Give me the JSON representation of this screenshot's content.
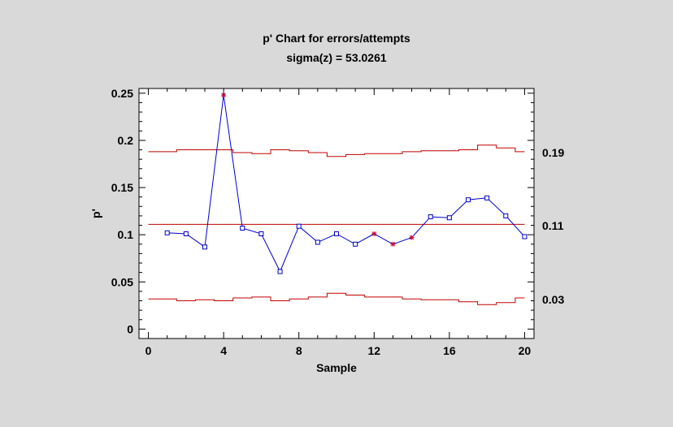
{
  "chart_data": {
    "type": "line",
    "title": "p' Chart for errors/attempts",
    "subtitle": "sigma(z) = 53.0261",
    "xlabel": "Sample",
    "ylabel": "p'",
    "xlim": [
      -0.5,
      20.5
    ],
    "ylim": [
      -0.01,
      0.255
    ],
    "x_ticks": [
      0,
      4,
      8,
      12,
      16,
      20
    ],
    "x_tick_labels": [
      "0",
      "4",
      "8",
      "12",
      "16",
      "20"
    ],
    "y_ticks": [
      0,
      0.05,
      0.1,
      0.15,
      0.2,
      0.25
    ],
    "y_tick_labels": [
      "0",
      "0.05",
      "0.1",
      "0.15",
      "0.2",
      "0.25"
    ],
    "center_line": 0.111,
    "center_label": "0.11",
    "ucl_label": "0.19",
    "lcl_label": "0.03",
    "x": [
      1,
      2,
      3,
      4,
      5,
      6,
      7,
      8,
      9,
      10,
      11,
      12,
      13,
      14,
      15,
      16,
      17,
      18,
      19,
      20
    ],
    "values": [
      0.102,
      0.101,
      0.087,
      0.248,
      0.107,
      0.101,
      0.061,
      0.109,
      0.092,
      0.101,
      0.09,
      0.101,
      0.09,
      0.097,
      0.119,
      0.118,
      0.137,
      0.139,
      0.12,
      0.098
    ],
    "point_markers": [
      "square",
      "square",
      "square",
      "star",
      "square",
      "square",
      "square",
      "square",
      "square",
      "square",
      "square",
      "star",
      "star",
      "star",
      "square",
      "square",
      "square",
      "square",
      "square",
      "square"
    ],
    "ucl": [
      0.188,
      0.188,
      0.19,
      0.19,
      0.19,
      0.187,
      0.186,
      0.19,
      0.189,
      0.187,
      0.183,
      0.185,
      0.186,
      0.186,
      0.188,
      0.189,
      0.189,
      0.19,
      0.195,
      0.192,
      0.188
    ],
    "lcl": [
      0.032,
      0.032,
      0.03,
      0.031,
      0.03,
      0.033,
      0.034,
      0.03,
      0.032,
      0.034,
      0.038,
      0.036,
      0.034,
      0.034,
      0.032,
      0.031,
      0.031,
      0.029,
      0.026,
      0.028,
      0.033
    ],
    "colors": {
      "series": "#0000cc",
      "limits": "#c00000",
      "star_marker": "#cc0033",
      "plot_background": "#ffffff",
      "page_background": "#d9d9d9"
    }
  }
}
